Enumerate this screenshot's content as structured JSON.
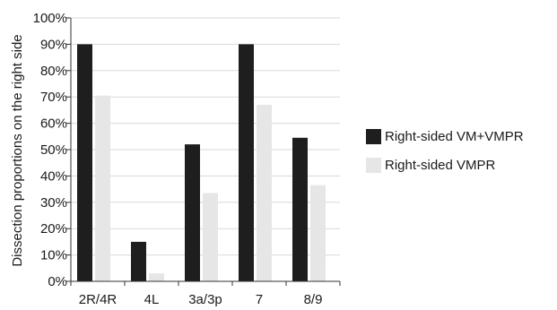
{
  "chart_data": {
    "type": "bar",
    "categories": [
      "2R/4R",
      "4L",
      "3a/3p",
      "7",
      "8/9"
    ],
    "series": [
      {
        "name": "Right-sided VM+VMPR",
        "values": [
          90,
          15,
          52,
          90,
          54.5
        ],
        "color": "#1e1e1e"
      },
      {
        "name": "Right-sided VMPR",
        "values": [
          70.5,
          3,
          33.5,
          67,
          36.5
        ],
        "color": "#e6e6e6"
      }
    ],
    "ylabel": "Dissection proportions on the right side",
    "xlabel": "",
    "ylim": [
      0,
      100
    ],
    "yticks": [
      "0%",
      "10%",
      "20%",
      "30%",
      "40%",
      "50%",
      "60%",
      "70%",
      "80%",
      "90%",
      "100%"
    ],
    "grid": true,
    "legend_position": "right"
  }
}
